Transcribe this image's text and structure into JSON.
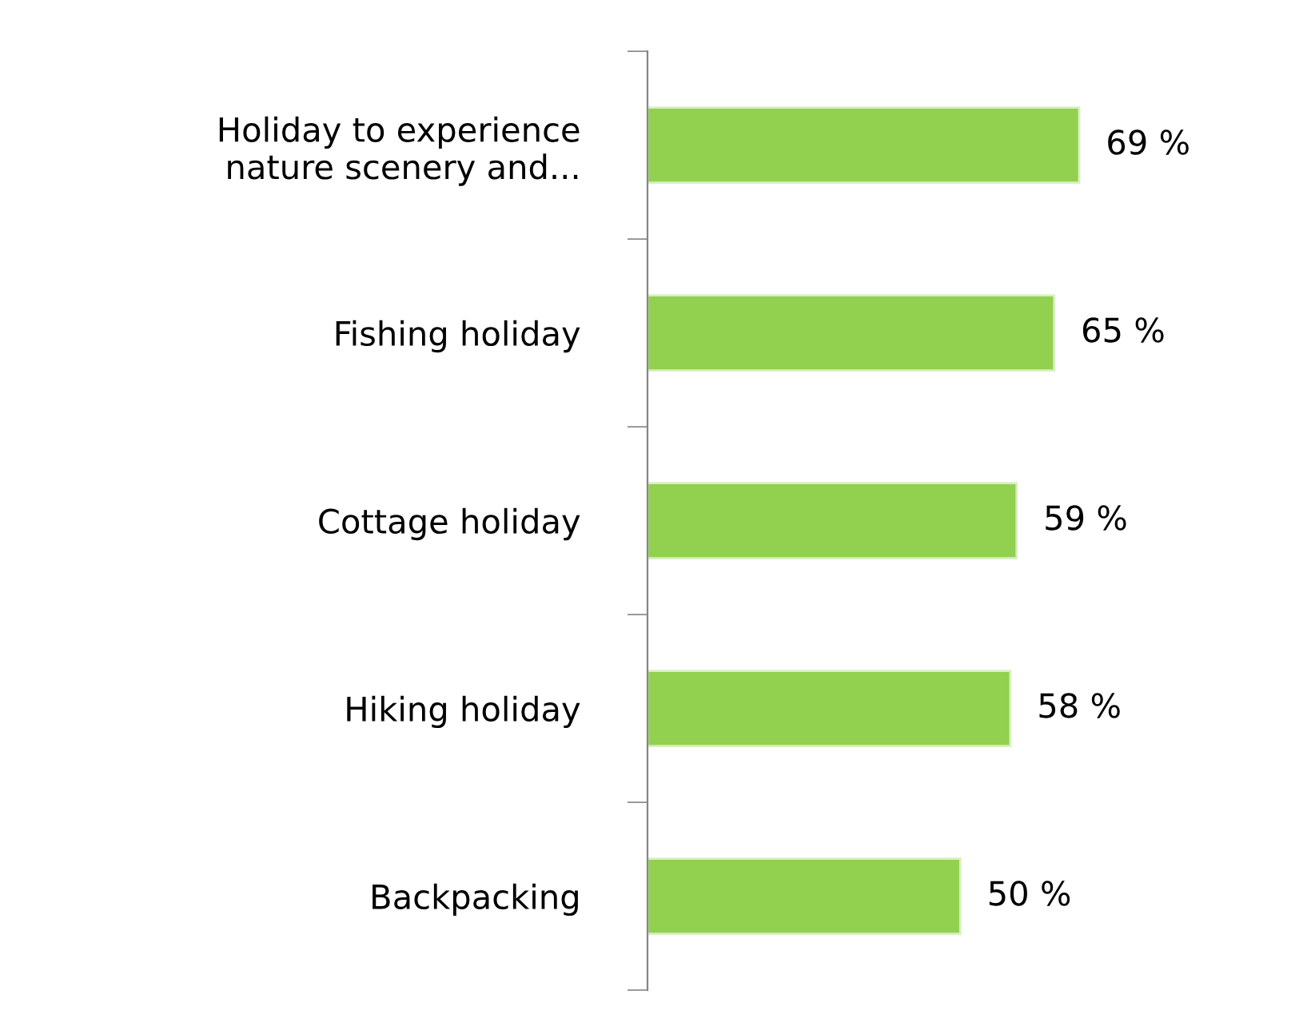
{
  "chart_data": {
    "type": "bar",
    "orientation": "horizontal",
    "categories": [
      "Holiday to experience\nnature scenery and...",
      "Fishing holiday",
      "Cottage holiday",
      "Hiking holiday",
      "Backpacking"
    ],
    "values": [
      69,
      65,
      59,
      58,
      50
    ],
    "value_labels": [
      "69 %",
      "65 %",
      "59 %",
      "58 %",
      "50 %"
    ],
    "color": "#92d050",
    "tick_labels": "y",
    "grid": false,
    "legend": false
  }
}
